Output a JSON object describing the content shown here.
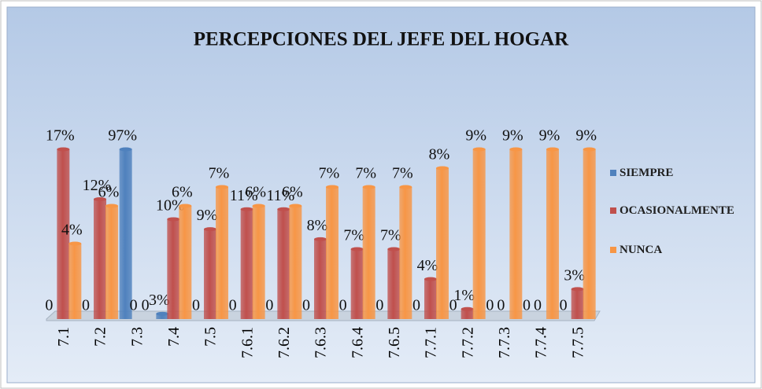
{
  "chart_data": {
    "type": "bar",
    "title": "PERCEPCIONES DEL JEFE DEL HOGAR",
    "categories": [
      "7.1",
      "7.2",
      "7.3",
      "7.4",
      "7.5",
      "7.6.1",
      "7.6.2",
      "7.6.3",
      "7.6.4",
      "7.6.5",
      "7.7.1",
      "7.7.2",
      "7.7.3",
      "7.7.4",
      "7.7.5"
    ],
    "series": [
      {
        "name": "SIEMPRE",
        "color": "#4f81bd",
        "values": [
          0,
          0,
          97,
          3,
          0,
          0,
          0,
          0,
          0,
          0,
          0,
          0,
          0,
          0,
          0
        ],
        "value_labels": [
          "0",
          "0",
          "97%",
          "3%",
          "0",
          "0",
          "0",
          "0",
          "0",
          "0",
          "0",
          "0",
          "0",
          "0",
          "0"
        ]
      },
      {
        "name": "OCASIONALMENTE",
        "color": "#c0504d",
        "values": [
          17,
          12,
          0,
          10,
          9,
          11,
          11,
          8,
          7,
          7,
          4,
          1,
          0,
          0,
          3
        ],
        "value_labels": [
          "17%",
          "12%",
          "0",
          "10%",
          "9%",
          "11%",
          "11%",
          "8%",
          "7%",
          "7%",
          "4%",
          "1%",
          "0",
          "0",
          "3%"
        ]
      },
      {
        "name": "NUNCA",
        "color": "#f79646",
        "values": [
          4,
          6,
          0,
          6,
          7,
          6,
          6,
          7,
          7,
          7,
          8,
          9,
          9,
          9,
          9
        ],
        "value_labels": [
          "4%",
          "6%",
          "0",
          "6%",
          "7%",
          "6%",
          "6%",
          "7%",
          "7%",
          "7%",
          "8%",
          "9%",
          "9%",
          "9%",
          "9%"
        ]
      }
    ],
    "legend": "right"
  }
}
